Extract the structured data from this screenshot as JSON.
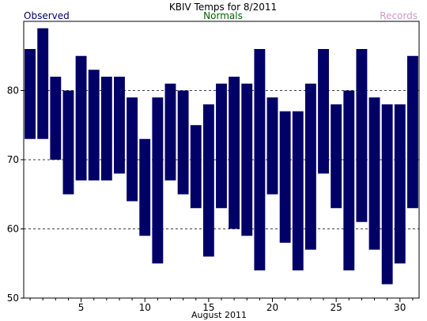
{
  "chart_data": {
    "type": "bar",
    "title": "KBIV Temps for 8/2011",
    "xlabel": "August 2011",
    "ylabel": "",
    "ylim": [
      50,
      90
    ],
    "xlim": [
      0.5,
      31.5
    ],
    "yticks": [
      50,
      60,
      70,
      80
    ],
    "xticks": [
      5,
      10,
      15,
      20,
      25,
      30
    ],
    "grid": "dashed-horizontal",
    "legend": {
      "placement": "top",
      "entries": [
        {
          "name": "Observed",
          "color": "#000066"
        },
        {
          "name": "Normals",
          "color": "#006600"
        },
        {
          "name": "Records",
          "color": "#cc99cc"
        }
      ]
    },
    "series": [
      {
        "name": "Observed",
        "color": "#000066",
        "x": [
          1,
          2,
          3,
          4,
          5,
          6,
          7,
          8,
          9,
          10,
          11,
          12,
          13,
          14,
          15,
          16,
          17,
          18,
          19,
          20,
          21,
          22,
          23,
          24,
          25,
          26,
          27,
          28,
          29,
          30,
          31
        ],
        "high": [
          86,
          89,
          82,
          80,
          85,
          83,
          82,
          82,
          79,
          73,
          79,
          81,
          80,
          75,
          78,
          81,
          82,
          81,
          86,
          79,
          77,
          77,
          81,
          86,
          78,
          80,
          86,
          79,
          78,
          78,
          85
        ],
        "low": [
          73,
          73,
          70,
          65,
          67,
          67,
          67,
          68,
          64,
          59,
          55,
          67,
          65,
          63,
          56,
          63,
          60,
          59,
          54,
          65,
          58,
          54,
          57,
          68,
          63,
          54,
          61,
          57,
          52,
          55,
          63
        ]
      }
    ]
  }
}
